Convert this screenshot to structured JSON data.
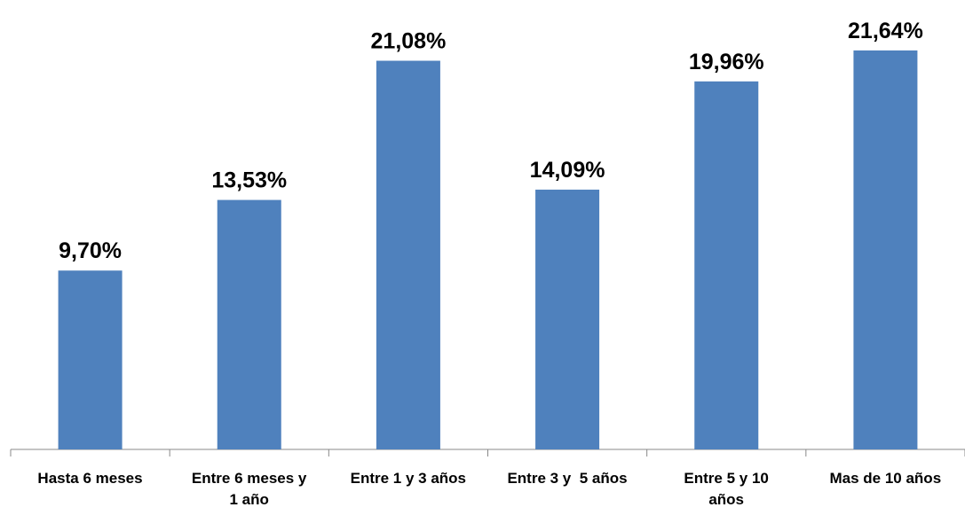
{
  "chart_data": {
    "type": "bar",
    "categories": [
      "Hasta 6 meses",
      "Entre 6 meses y\n1 año",
      "Entre 1 y 3 años",
      "Entre 3 y  5 años",
      "Entre 5 y 10\naños",
      "Mas de 10 años"
    ],
    "values": [
      9.7,
      13.53,
      21.08,
      14.09,
      19.96,
      21.64
    ],
    "value_labels": [
      "9,70%",
      "13,53%",
      "21,08%",
      "14,09%",
      "19,96%",
      "21,64%"
    ],
    "color": "#4f81bd"
  }
}
